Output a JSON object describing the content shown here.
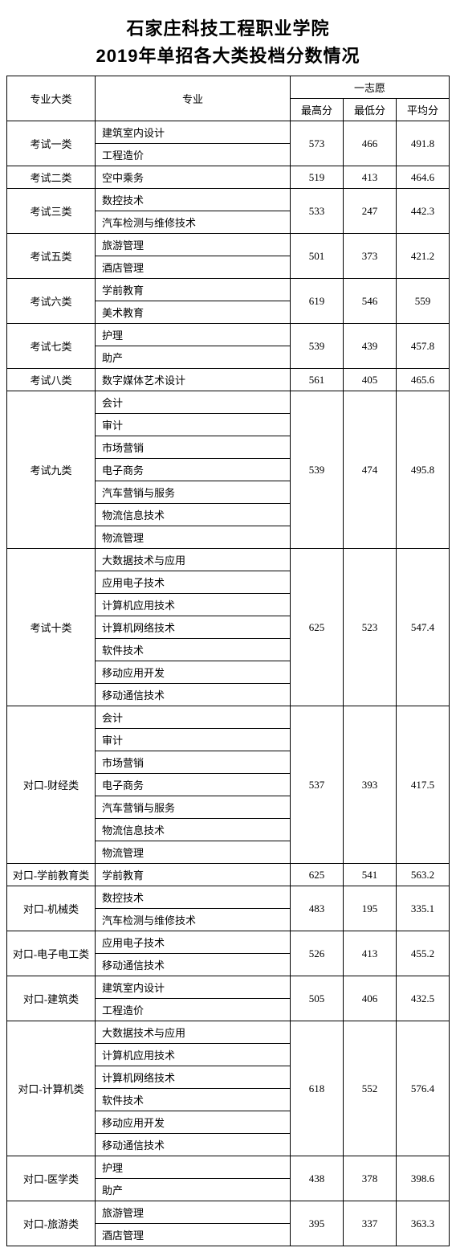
{
  "title_line1": "石家庄科技工程职业学院",
  "title_line2": "2019年单招各大类投档分数情况",
  "header": {
    "category": "专业大类",
    "major": "专业",
    "choice": "一志愿",
    "max": "最高分",
    "min": "最低分",
    "avg": "平均分"
  },
  "groups": [
    {
      "category": "考试一类",
      "majors": [
        "建筑室内设计",
        "工程造价"
      ],
      "max": "573",
      "min": "466",
      "avg": "491.8"
    },
    {
      "category": "考试二类",
      "majors": [
        "空中乘务"
      ],
      "max": "519",
      "min": "413",
      "avg": "464.6"
    },
    {
      "category": "考试三类",
      "majors": [
        "数控技术",
        "汽车检测与维修技术"
      ],
      "max": "533",
      "min": "247",
      "avg": "442.3"
    },
    {
      "category": "考试五类",
      "majors": [
        "旅游管理",
        "酒店管理"
      ],
      "max": "501",
      "min": "373",
      "avg": "421.2"
    },
    {
      "category": "考试六类",
      "majors": [
        "学前教育",
        "美术教育"
      ],
      "max": "619",
      "min": "546",
      "avg": "559"
    },
    {
      "category": "考试七类",
      "majors": [
        "护理",
        "助产"
      ],
      "max": "539",
      "min": "439",
      "avg": "457.8"
    },
    {
      "category": "考试八类",
      "majors": [
        "数字媒体艺术设计"
      ],
      "max": "561",
      "min": "405",
      "avg": "465.6"
    },
    {
      "category": "考试九类",
      "majors": [
        "会计",
        "审计",
        "市场营销",
        "电子商务",
        "汽车营销与服务",
        "物流信息技术",
        "物流管理"
      ],
      "max": "539",
      "min": "474",
      "avg": "495.8"
    },
    {
      "category": "考试十类",
      "majors": [
        "大数据技术与应用",
        "应用电子技术",
        "计算机应用技术",
        "计算机网络技术",
        "软件技术",
        "移动应用开发",
        "移动通信技术"
      ],
      "max": "625",
      "min": "523",
      "avg": "547.4"
    },
    {
      "category": "对口-财经类",
      "majors": [
        "会计",
        "审计",
        "市场营销",
        "电子商务",
        "汽车营销与服务",
        "物流信息技术",
        "物流管理"
      ],
      "max": "537",
      "min": "393",
      "avg": "417.5"
    },
    {
      "category": "对口-学前教育类",
      "majors": [
        "学前教育"
      ],
      "max": "625",
      "min": "541",
      "avg": "563.2"
    },
    {
      "category": "对口-机械类",
      "majors": [
        "数控技术",
        "汽车检测与维修技术"
      ],
      "max": "483",
      "min": "195",
      "avg": "335.1"
    },
    {
      "category": "对口-电子电工类",
      "majors": [
        "应用电子技术",
        "移动通信技术"
      ],
      "max": "526",
      "min": "413",
      "avg": "455.2"
    },
    {
      "category": "对口-建筑类",
      "majors": [
        "建筑室内设计",
        "工程造价"
      ],
      "max": "505",
      "min": "406",
      "avg": "432.5"
    },
    {
      "category": "对口-计算机类",
      "majors": [
        "大数据技术与应用",
        "计算机应用技术",
        "计算机网络技术",
        "软件技术",
        "移动应用开发",
        "移动通信技术"
      ],
      "max": "618",
      "min": "552",
      "avg": "576.4"
    },
    {
      "category": "对口-医学类",
      "majors": [
        "护理",
        "助产"
      ],
      "max": "438",
      "min": "378",
      "avg": "398.6"
    },
    {
      "category": "对口-旅游类",
      "majors": [
        "旅游管理",
        "酒店管理"
      ],
      "max": "395",
      "min": "337",
      "avg": "363.3"
    }
  ]
}
